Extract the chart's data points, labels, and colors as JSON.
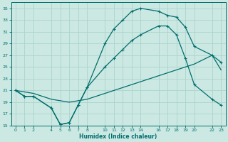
{
  "xlabel": "Humidex (Indice chaleur)",
  "bg_color": "#cce8e3",
  "grid_color": "#aad4cc",
  "line_color": "#006e6e",
  "ylim": [
    15,
    36
  ],
  "xlim": [
    -0.5,
    23.5
  ],
  "yticks": [
    15,
    17,
    19,
    21,
    23,
    25,
    27,
    29,
    31,
    33,
    35
  ],
  "xticks": [
    0,
    1,
    2,
    4,
    5,
    6,
    7,
    8,
    10,
    11,
    12,
    13,
    14,
    16,
    17,
    18,
    19,
    20,
    22,
    23
  ],
  "line1_x": [
    0,
    1,
    2,
    4,
    5,
    6,
    7,
    8,
    10,
    11,
    12,
    13,
    14,
    16,
    17,
    18,
    19,
    20,
    22,
    23
  ],
  "line1_y": [
    21.0,
    20.0,
    20.0,
    18.0,
    15.2,
    15.5,
    18.5,
    21.5,
    29.0,
    31.5,
    33.0,
    34.5,
    35.0,
    34.5,
    33.8,
    33.5,
    31.8,
    28.5,
    27.0,
    25.8
  ],
  "line2_x": [
    0,
    1,
    2,
    4,
    5,
    6,
    7,
    8,
    10,
    11,
    12,
    13,
    14,
    16,
    17,
    18,
    19,
    20,
    22,
    23
  ],
  "line2_y": [
    21.0,
    20.0,
    20.0,
    18.0,
    15.2,
    15.5,
    18.5,
    21.5,
    25.0,
    26.5,
    28.0,
    29.5,
    30.5,
    32.0,
    32.0,
    30.5,
    26.5,
    22.0,
    19.5,
    18.5
  ],
  "line3_x": [
    0,
    2,
    4,
    6,
    8,
    10,
    12,
    14,
    16,
    18,
    20,
    22,
    23
  ],
  "line3_y": [
    21.0,
    20.5,
    19.5,
    19.0,
    19.5,
    20.5,
    21.5,
    22.5,
    23.5,
    24.5,
    25.5,
    27.0,
    24.5
  ]
}
